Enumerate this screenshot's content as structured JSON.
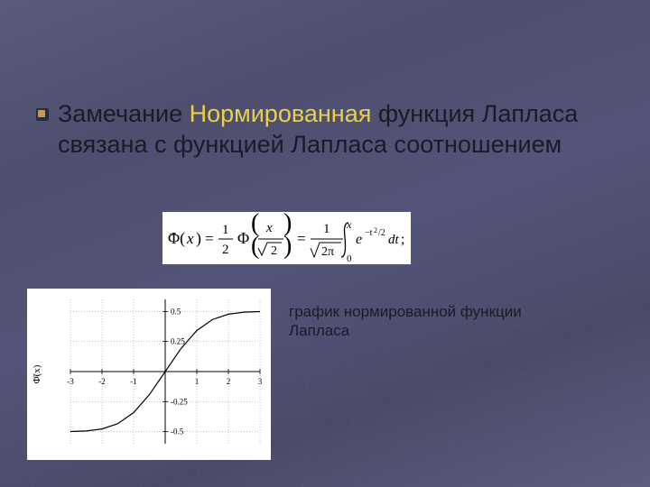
{
  "slide": {
    "background_gradient": [
      "#5a5a7a",
      "#4e4e6e",
      "#54547a",
      "#4a4a68",
      "#5c5c80"
    ],
    "grid_color": "rgba(120,120,160,0.15)",
    "bullet": {
      "outer_color": "#2b2b40",
      "inner_color": "#c0a050"
    },
    "text_color_dark": "#1a1a2a",
    "text_color_highlight": "#e8d048",
    "heading": {
      "part1": "Замечание",
      "part2_highlight": "Нормированная",
      "part3": " функция Лапласа связана с функцией Лапласа соотношением",
      "fontsize": 27
    },
    "formula": {
      "latex": "Φ̄(x) = (1/2) Φ(x/√2) = (1/√(2π)) ∫_0^x e^{-t²/2} dt;",
      "background": "#ffffff",
      "text_color": "#000000"
    },
    "graph": {
      "type": "line",
      "background": "#ffffff",
      "xlim": [
        -3,
        3
      ],
      "ylim": [
        -0.6,
        0.6
      ],
      "xtick_step": 1,
      "yticks": [
        -0.5,
        -0.25,
        0.25,
        0.5
      ],
      "ytick_labels": [
        "-0.5",
        "-0.25",
        "0.25",
        "0.5"
      ],
      "axis_color": "#000000",
      "line_color": "#000000",
      "line_width": 1.2,
      "dash_color": "#888888",
      "ylabel": "Φ̄(x)",
      "points": [
        {
          "x": -3.0,
          "y": -0.4987
        },
        {
          "x": -2.5,
          "y": -0.4938
        },
        {
          "x": -2.0,
          "y": -0.4772
        },
        {
          "x": -1.5,
          "y": -0.4332
        },
        {
          "x": -1.0,
          "y": -0.3413
        },
        {
          "x": -0.5,
          "y": -0.1915
        },
        {
          "x": 0.0,
          "y": 0.0
        },
        {
          "x": 0.5,
          "y": 0.1915
        },
        {
          "x": 1.0,
          "y": 0.3413
        },
        {
          "x": 1.5,
          "y": 0.4332
        },
        {
          "x": 2.0,
          "y": 0.4772
        },
        {
          "x": 2.5,
          "y": 0.4938
        },
        {
          "x": 3.0,
          "y": 0.4987
        }
      ]
    },
    "caption": "график нормированной функции Лапласа",
    "caption_fontsize": 17
  }
}
